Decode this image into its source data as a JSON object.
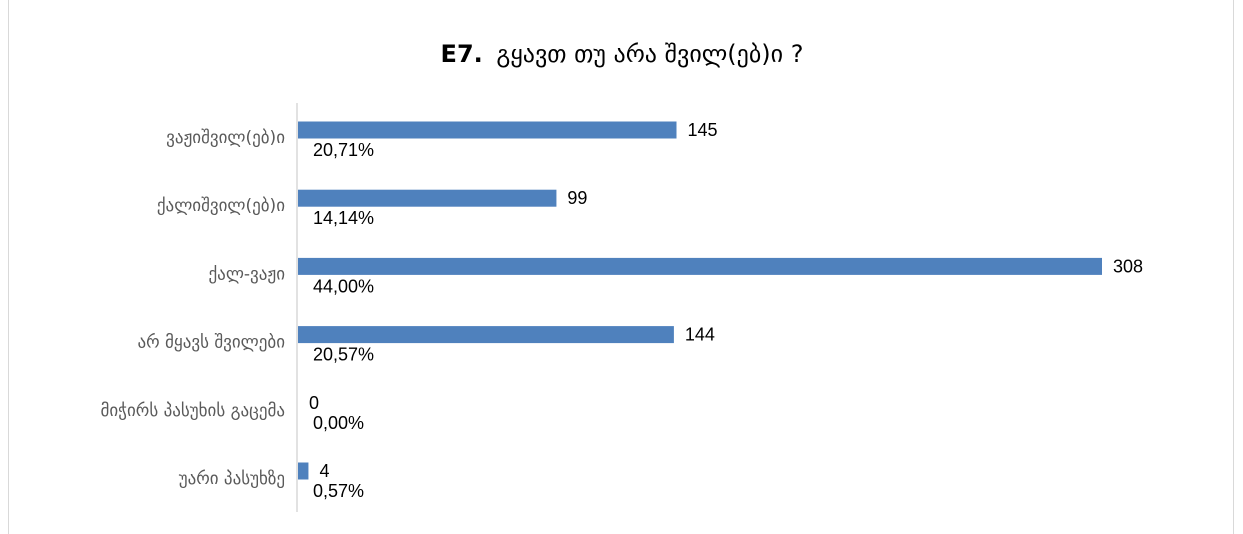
{
  "chart_data": {
    "type": "bar",
    "orientation": "horizontal",
    "title_code": "E7.",
    "title_text": "გყავთ თუ არა შვილ(ებ)ი ?",
    "categories": [
      "ვაჟიშვილ(ებ)ი",
      "ქალიშვილ(ებ)ი",
      "ქალ-ვაჟი",
      "არ მყავს შვილები",
      "მიჭირს პასუხის გაცემა",
      "უარი პასუხზე"
    ],
    "values": [
      145,
      99,
      308,
      144,
      0,
      4
    ],
    "percent_labels": [
      "20,71%",
      "14,14%",
      "44,00%",
      "20,57%",
      "0,00%",
      "0,57%"
    ],
    "xlim": [
      0,
      308
    ],
    "grid": false,
    "legend": "none",
    "bar_color": "#4f81bd"
  }
}
